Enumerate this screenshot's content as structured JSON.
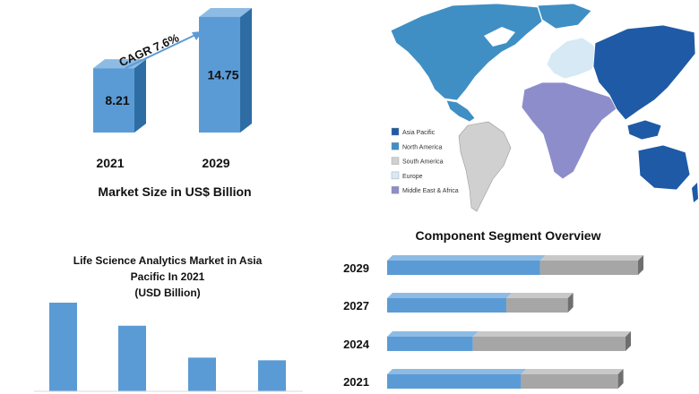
{
  "chart_data": [
    {
      "type": "bar",
      "title": "Market Size in US$ Billion",
      "categories": [
        "2021",
        "2029"
      ],
      "values": [
        8.21,
        14.75
      ],
      "annotation": "CAGR 7.6%",
      "colors": {
        "front": "#5b9bd5",
        "side": "#2e6da4",
        "top": "#8dbbe4"
      }
    },
    {
      "type": "bar",
      "title_lines": [
        "Life Science Analytics Market in Asia",
        "Pacific In 2021",
        "(USD Billion)"
      ],
      "values": [
        1.0,
        0.74,
        0.38,
        0.35
      ],
      "colors": {
        "bar": "#5b9bd5"
      }
    },
    {
      "type": "bar",
      "orientation": "horizontal",
      "stacked": true,
      "title": "Component Segment Overview",
      "categories": [
        "2029",
        "2027",
        "2024",
        "2021"
      ],
      "series": [
        {
          "values": [
            0.61,
            0.66,
            0.36,
            0.58
          ],
          "color": "#5b9bd5"
        },
        {
          "values": [
            0.39,
            0.34,
            0.64,
            0.42
          ],
          "color": "#a6a6a6"
        }
      ],
      "total_lengths": [
        1.0,
        0.72,
        0.95,
        0.92
      ]
    }
  ],
  "map": {
    "legend": [
      {
        "label": "Asia Pacific",
        "color": "#1f5aa6"
      },
      {
        "label": "North America",
        "color": "#3f8fc4"
      },
      {
        "label": "South America",
        "color": "#d0d0d0"
      },
      {
        "label": "Europe",
        "color": "#d6e9f5"
      },
      {
        "label": "Middle East & Africa",
        "color": "#8d8dcc"
      }
    ]
  }
}
